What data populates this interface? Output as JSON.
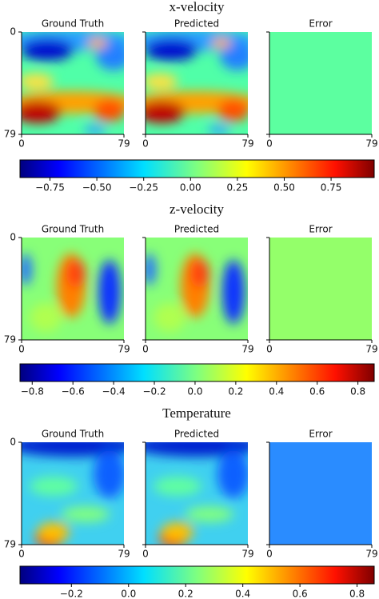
{
  "chart_data": [
    {
      "type": "heatmap",
      "title": "x-velocity",
      "panels": [
        "Ground Truth",
        "Predicted",
        "Error"
      ],
      "xlim": [
        0,
        79
      ],
      "ylim": [
        0,
        79
      ],
      "xticks": [
        0,
        79
      ],
      "yticks": [
        0,
        79
      ],
      "colorbar": {
        "lim": [
          -0.91,
          0.98
        ],
        "ticks": [
          {
            "value": -0.75,
            "label": "−0.75"
          },
          {
            "value": -0.5,
            "label": "−0.50"
          },
          {
            "value": -0.25,
            "label": "−0.25"
          },
          {
            "value": 0,
            "label": "0.00"
          },
          0.25,
          {
            "value": 0.5,
            "label": "0.50"
          },
          0.75
        ]
      }
    },
    {
      "type": "heatmap",
      "title": "z-velocity",
      "panels": [
        "Ground Truth",
        "Predicted",
        "Error"
      ],
      "xlim": [
        0,
        79
      ],
      "ylim": [
        0,
        79
      ],
      "xticks": [
        0,
        79
      ],
      "yticks": [
        0,
        79
      ],
      "colorbar": {
        "lim": [
          -0.86,
          0.88
        ],
        "ticks": [
          {
            "value": -0.8,
            "label": "−0.8"
          },
          {
            "value": -0.6,
            "label": "−0.6"
          },
          {
            "value": -0.4,
            "label": "−0.4"
          },
          {
            "value": -0.2,
            "label": "−0.2"
          },
          {
            "value": 0,
            "label": "0.0"
          },
          0.2,
          0.4,
          0.6,
          0.8
        ]
      }
    },
    {
      "type": "heatmap",
      "title": "Temperature",
      "panels": [
        "Ground Truth",
        "Predicted",
        "Error"
      ],
      "xlim": [
        0,
        79
      ],
      "ylim": [
        0,
        79
      ],
      "xticks": [
        0,
        79
      ],
      "yticks": [
        0,
        79
      ],
      "colorbar": {
        "lim": [
          -0.38,
          0.86
        ],
        "ticks": [
          {
            "value": -0.2,
            "label": "−0.2"
          },
          {
            "value": 0,
            "label": "0.0"
          },
          0.2,
          0.4,
          0.6,
          0.8
        ]
      }
    }
  ]
}
